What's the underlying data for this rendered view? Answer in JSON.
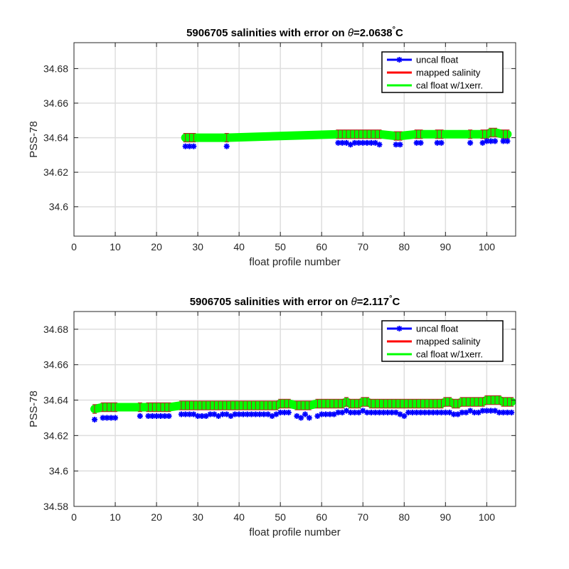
{
  "chart_data": [
    {
      "type": "scatter",
      "title_prefix": "5906705 salinities with error on ",
      "title_theta": "θ",
      "title_value": "=2.0638",
      "title_deg": "°",
      "title_unit": "C",
      "xlabel": "float profile number",
      "ylabel": "PSS-78",
      "xlim": [
        0,
        107
      ],
      "ylim": [
        34.583,
        34.695
      ],
      "xticks": [
        0,
        10,
        20,
        30,
        40,
        50,
        60,
        70,
        80,
        90,
        100
      ],
      "yticks": [
        34.6,
        34.62,
        34.64,
        34.66,
        34.68
      ],
      "yticklabels": [
        "34.6",
        "34.62",
        "34.64",
        "34.66",
        "34.68"
      ],
      "grid": true,
      "legend_position": "top-right",
      "legend": [
        "uncal float",
        "mapped salinity",
        "cal float w/1xerr."
      ],
      "colors": {
        "uncal": "#0000ff",
        "mapped": "#ff0000",
        "cal": "#00ff00",
        "errorbar": "#b22222"
      },
      "series": [
        {
          "name": "uncal float",
          "x": [
            27,
            28,
            29,
            37,
            64,
            65,
            66,
            67,
            68,
            69,
            70,
            71,
            72,
            73,
            74,
            78,
            79,
            83,
            84,
            88,
            89,
            96,
            99,
            100,
            101,
            102,
            104,
            105
          ],
          "y": [
            34.635,
            34.635,
            34.635,
            34.635,
            34.637,
            34.637,
            34.637,
            34.636,
            34.637,
            34.637,
            34.637,
            34.637,
            34.637,
            34.637,
            34.636,
            34.636,
            34.636,
            34.637,
            34.637,
            34.637,
            34.637,
            34.637,
            34.637,
            34.638,
            34.638,
            34.638,
            34.638,
            34.638
          ]
        },
        {
          "name": "cal float w/1xerr.",
          "x": [
            27,
            28,
            29,
            37,
            64,
            65,
            66,
            67,
            68,
            69,
            70,
            71,
            72,
            73,
            74,
            78,
            79,
            83,
            84,
            88,
            89,
            96,
            99,
            100,
            101,
            102,
            104,
            105
          ],
          "y": [
            34.64,
            34.64,
            34.64,
            34.64,
            34.642,
            34.642,
            34.642,
            34.642,
            34.642,
            34.642,
            34.642,
            34.642,
            34.642,
            34.642,
            34.642,
            34.641,
            34.641,
            34.642,
            34.642,
            34.642,
            34.642,
            34.642,
            34.642,
            34.642,
            34.643,
            34.643,
            34.642,
            34.642
          ],
          "err": 0.0025
        }
      ]
    },
    {
      "type": "scatter",
      "title_prefix": "5906705 salinities with error on ",
      "title_theta": "θ",
      "title_value": "=2.117",
      "title_deg": "°",
      "title_unit": "C",
      "xlabel": "float profile number",
      "ylabel": "PSS-78",
      "xlim": [
        0,
        107
      ],
      "ylim": [
        34.58,
        34.69
      ],
      "xticks": [
        0,
        10,
        20,
        30,
        40,
        50,
        60,
        70,
        80,
        90,
        100
      ],
      "yticks": [
        34.58,
        34.6,
        34.62,
        34.64,
        34.66,
        34.68
      ],
      "yticklabels": [
        "34.58",
        "34.6",
        "34.62",
        "34.64",
        "34.66",
        "34.68"
      ],
      "grid": true,
      "legend_position": "top-right",
      "legend": [
        "uncal float",
        "mapped salinity",
        "cal float w/1xerr."
      ],
      "colors": {
        "uncal": "#0000ff",
        "mapped": "#ff0000",
        "cal": "#00ff00",
        "errorbar": "#b22222"
      },
      "series": [
        {
          "name": "uncal float",
          "x": [
            5,
            7,
            8,
            9,
            10,
            16,
            18,
            19,
            20,
            21,
            22,
            23,
            26,
            27,
            28,
            29,
            30,
            31,
            32,
            33,
            34,
            35,
            36,
            37,
            38,
            39,
            40,
            41,
            42,
            43,
            44,
            45,
            46,
            47,
            48,
            49,
            50,
            51,
            52,
            54,
            55,
            56,
            57,
            59,
            60,
            61,
            62,
            63,
            64,
            65,
            66,
            67,
            68,
            69,
            70,
            71,
            72,
            73,
            74,
            75,
            76,
            77,
            78,
            79,
            80,
            81,
            82,
            83,
            84,
            85,
            86,
            87,
            88,
            89,
            90,
            91,
            92,
            93,
            94,
            95,
            96,
            97,
            98,
            99,
            100,
            101,
            102,
            103,
            104,
            105,
            106
          ],
          "y": [
            34.629,
            34.63,
            34.63,
            34.63,
            34.63,
            34.631,
            34.631,
            34.631,
            34.631,
            34.631,
            34.631,
            34.631,
            34.632,
            34.632,
            34.632,
            34.632,
            34.631,
            34.631,
            34.631,
            34.632,
            34.632,
            34.631,
            34.632,
            34.632,
            34.631,
            34.632,
            34.632,
            34.632,
            34.632,
            34.632,
            34.632,
            34.632,
            34.632,
            34.632,
            34.631,
            34.632,
            34.633,
            34.633,
            34.633,
            34.631,
            34.63,
            34.632,
            34.63,
            34.631,
            34.632,
            34.632,
            34.632,
            34.632,
            34.633,
            34.633,
            34.634,
            34.633,
            34.633,
            34.633,
            34.634,
            34.633,
            34.633,
            34.633,
            34.633,
            34.633,
            34.633,
            34.633,
            34.633,
            34.632,
            34.631,
            34.633,
            34.633,
            34.633,
            34.633,
            34.633,
            34.633,
            34.633,
            34.633,
            34.633,
            34.633,
            34.633,
            34.632,
            34.632,
            34.633,
            34.633,
            34.634,
            34.633,
            34.633,
            34.634,
            34.634,
            34.634,
            34.634,
            34.633,
            34.633,
            34.633,
            34.633
          ]
        },
        {
          "name": "cal float w/1xerr.",
          "x": [
            5,
            7,
            8,
            9,
            10,
            16,
            18,
            19,
            20,
            21,
            22,
            23,
            26,
            27,
            28,
            29,
            30,
            31,
            32,
            33,
            34,
            35,
            36,
            37,
            38,
            39,
            40,
            41,
            42,
            43,
            44,
            45,
            46,
            47,
            48,
            49,
            50,
            51,
            52,
            54,
            55,
            56,
            57,
            59,
            60,
            61,
            62,
            63,
            64,
            65,
            66,
            67,
            68,
            69,
            70,
            71,
            72,
            73,
            74,
            75,
            76,
            77,
            78,
            79,
            80,
            81,
            82,
            83,
            84,
            85,
            86,
            87,
            88,
            89,
            90,
            91,
            92,
            93,
            94,
            95,
            96,
            97,
            98,
            99,
            100,
            101,
            102,
            103,
            104,
            105,
            106
          ],
          "y": [
            34.635,
            34.636,
            34.636,
            34.636,
            34.636,
            34.636,
            34.636,
            34.636,
            34.636,
            34.636,
            34.636,
            34.636,
            34.637,
            34.637,
            34.637,
            34.637,
            34.637,
            34.637,
            34.637,
            34.637,
            34.637,
            34.637,
            34.637,
            34.637,
            34.637,
            34.637,
            34.637,
            34.637,
            34.637,
            34.637,
            34.637,
            34.637,
            34.637,
            34.637,
            34.637,
            34.637,
            34.638,
            34.638,
            34.638,
            34.637,
            34.637,
            34.637,
            34.637,
            34.638,
            34.638,
            34.638,
            34.638,
            34.638,
            34.638,
            34.638,
            34.639,
            34.638,
            34.638,
            34.638,
            34.639,
            34.639,
            34.638,
            34.638,
            34.638,
            34.638,
            34.638,
            34.638,
            34.638,
            34.638,
            34.638,
            34.638,
            34.638,
            34.638,
            34.638,
            34.638,
            34.638,
            34.638,
            34.638,
            34.638,
            34.639,
            34.639,
            34.638,
            34.638,
            34.639,
            34.639,
            34.639,
            34.639,
            34.639,
            34.639,
            34.64,
            34.64,
            34.64,
            34.64,
            34.639,
            34.639,
            34.639
          ],
          "err": 0.0025
        }
      ]
    }
  ]
}
